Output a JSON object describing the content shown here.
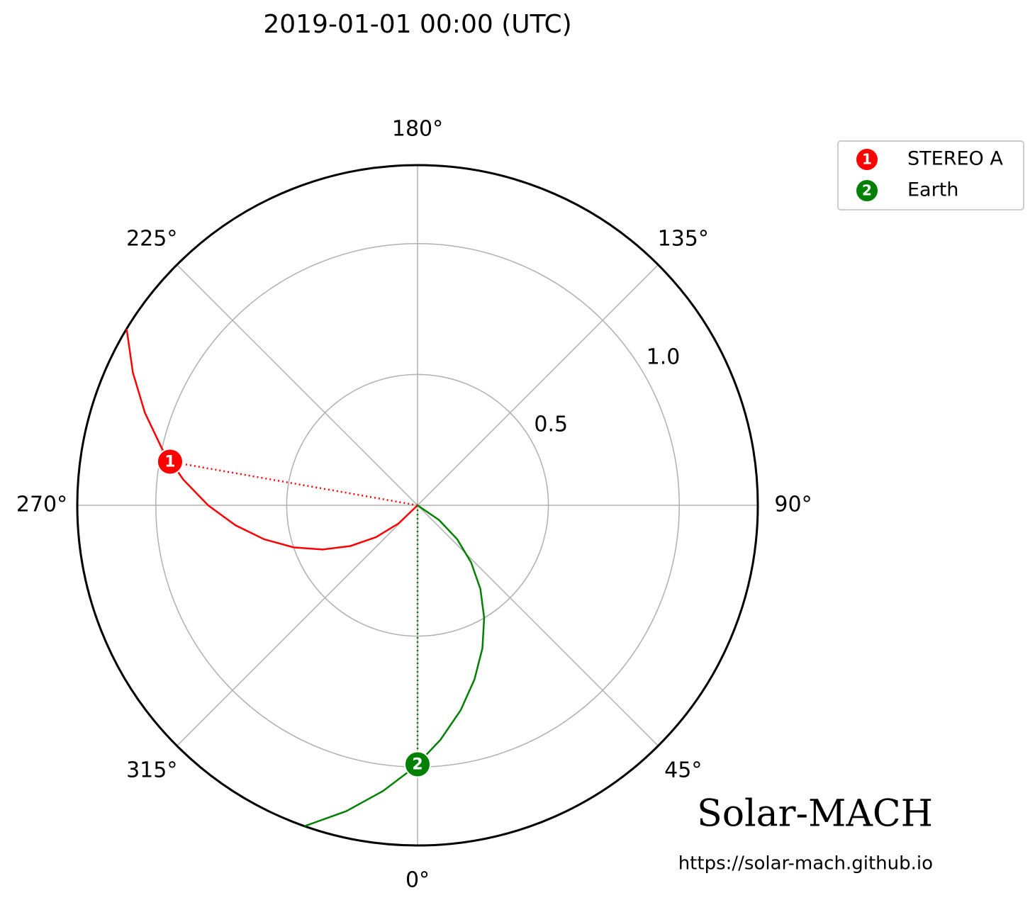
{
  "chart_data": {
    "type": "polar",
    "title": "2019-01-01 00:00 (UTC)",
    "rlim": [
      0,
      1.3
    ],
    "rticks": [
      0.5,
      {
        "value": 1,
        "label": "1.0"
      }
    ],
    "thetaticks": [
      {
        "value": 0,
        "label": "0°"
      },
      {
        "value": 45,
        "label": "45°"
      },
      {
        "value": 90,
        "label": "90°"
      },
      {
        "value": 135,
        "label": "135°"
      },
      {
        "value": 180,
        "label": "180°"
      },
      {
        "value": 225,
        "label": "225°"
      },
      {
        "value": 270,
        "label": "270°"
      },
      {
        "value": 315,
        "label": "315°"
      }
    ],
    "grid": true,
    "legend": "outside upper right",
    "series": [
      {
        "name": "STEREO A",
        "marker_label": "1",
        "color": "#ff0000",
        "r": 0.96,
        "theta": 260,
        "spiral": {
          "r": [
            0,
            0.1,
            0.2,
            0.3,
            0.4,
            0.5,
            0.6,
            0.7,
            0.8,
            0.9,
            1.0,
            1.1,
            1.2,
            1.3
          ],
          "theta": [
            320,
            313.75,
            307.5,
            301.25,
            295,
            288.75,
            282.5,
            276.25,
            270,
            263.75,
            257.5,
            251.25,
            245,
            238.75
          ]
        }
      },
      {
        "name": "Earth",
        "marker_label": "2",
        "color": "#008000",
        "r": 0.99,
        "theta": 0,
        "spiral": {
          "r": [
            0,
            0.1,
            0.2,
            0.3,
            0.4,
            0.5,
            0.6,
            0.7,
            0.8,
            0.9,
            1.0,
            1.1,
            1.2,
            1.3
          ],
          "theta": [
            61.9,
            55.6,
            49.4,
            43.1,
            36.9,
            30.6,
            24.4,
            18.1,
            11.9,
            5.6,
            -0.6,
            -6.9,
            -13.1,
            -19.4
          ]
        }
      }
    ],
    "brand": "Solar-MACH",
    "url": "https://solar-mach.github.io"
  }
}
